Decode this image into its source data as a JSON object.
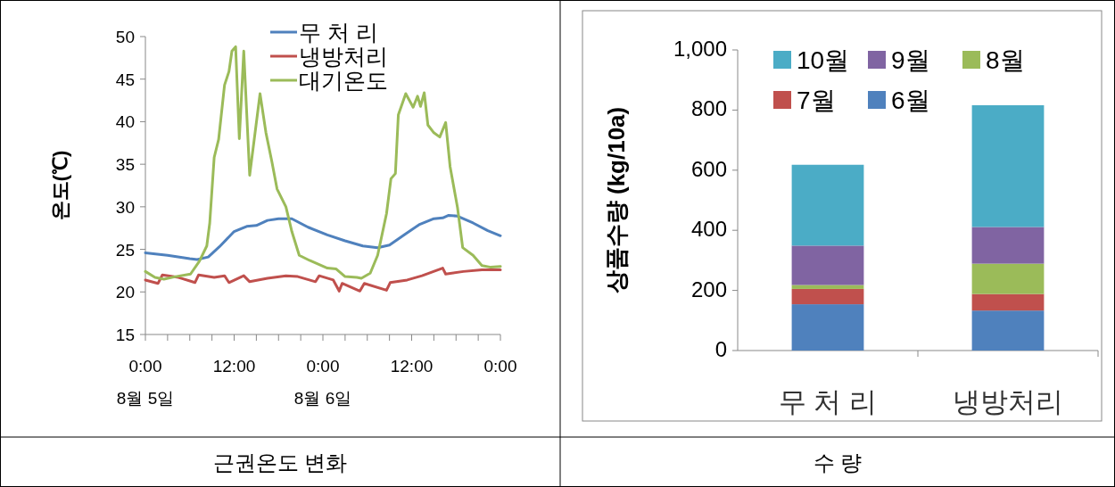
{
  "chart_data": [
    {
      "type": "line",
      "ylabel": "온도(℃)",
      "annotations": [
        "근권온도 변화"
      ],
      "legend": "top",
      "marker": "none",
      "line_style": "solid",
      "xlim": [
        "--08-05T00:00",
        "--08-07T00:00"
      ],
      "xticks": [
        {
          "value": "--08-05T00:00",
          "label": "0:00\n8월 5일"
        },
        {
          "value": "--08-05T03:00",
          "label": null
        },
        {
          "value": "--08-05T06:00",
          "label": null
        },
        {
          "value": "--08-05T09:00",
          "label": null
        },
        {
          "value": "--08-05T12:00",
          "label": "12:00"
        },
        {
          "value": "--08-05T15:00",
          "label": null
        },
        {
          "value": "--08-05T18:00",
          "label": null
        },
        {
          "value": "--08-05T21:00",
          "label": null
        },
        {
          "value": "--08-06T00:00",
          "label": "0:00\n8월 6일"
        },
        {
          "value": "--08-06T03:00",
          "label": null
        },
        {
          "value": "--08-06T06:00",
          "label": null
        },
        {
          "value": "--08-06T09:00",
          "label": null
        },
        {
          "value": "--08-06T12:00",
          "label": "12:00"
        },
        {
          "value": "--08-06T15:00",
          "label": null
        },
        {
          "value": "--08-06T18:00",
          "label": null
        },
        {
          "value": "--08-06T21:00",
          "label": null
        },
        {
          "value": "--08-07T00:00",
          "label": "0:00"
        }
      ],
      "ylim": [
        15,
        50
      ],
      "yticks": [
        15,
        20,
        25,
        30,
        35,
        40,
        45,
        50
      ],
      "series": [
        {
          "name": "무 처 리",
          "color": "#4f81bd",
          "x": [
            "--08-05T00:00",
            "--08-05T03:00",
            "--08-05T06:00",
            "--08-05T07:00",
            "--08-05T08:30",
            "--08-05T10:00",
            "--08-05T12:00",
            "--08-05T13:42",
            "--08-05T15:00",
            "--08-05T16:30",
            "--08-05T18:00",
            "--08-05T19:48",
            "--08-05T22:00",
            "--08-06T00:36",
            "--08-06T03:00",
            "--08-06T05:24",
            "--08-06T07:24",
            "--08-06T09:00",
            "--08-06T11:00",
            "--08-06T13:00",
            "--08-06T15:00",
            "--08-06T16:12",
            "--08-06T17:00",
            "--08-06T18:12",
            "--08-06T20:18",
            "--08-06T22:18",
            "--08-07T00:00"
          ],
          "values": [
            24.6,
            24.3,
            23.9,
            23.8,
            24.1,
            25.3,
            27.1,
            27.7,
            27.8,
            28.4,
            28.6,
            28.6,
            27.6,
            26.7,
            26.0,
            25.4,
            25.2,
            25.5,
            26.7,
            27.9,
            28.6,
            28.7,
            29.0,
            28.9,
            28.1,
            27.2,
            26.6
          ]
        },
        {
          "name": "냉방처리",
          "color": "#c0504d",
          "x": [
            "--08-05T00:00",
            "--08-05T01:42",
            "--08-05T02:18",
            "--08-05T04:30",
            "--08-05T06:42",
            "--08-05T07:12",
            "--08-05T09:18",
            "--08-05T10:42",
            "--08-05T11:18",
            "--08-05T13:18",
            "--08-05T14:06",
            "--08-05T16:30",
            "--08-05T19:00",
            "--08-05T20:36",
            "--08-05T23:00",
            "--08-05T23:30",
            "--08-06T01:24",
            "--08-06T02:12",
            "--08-06T02:36",
            "--08-06T05:00",
            "--08-06T05:36",
            "--08-06T08:36",
            "--08-06T09:06",
            "--08-06T11:24",
            "--08-06T13:24",
            "--08-06T16:12",
            "--08-06T16:36",
            "--08-06T19:00",
            "--08-06T21:30",
            "--08-07T00:00"
          ],
          "values": [
            21.4,
            21.0,
            22.0,
            21.7,
            21.1,
            22.0,
            21.7,
            21.9,
            21.1,
            21.9,
            21.2,
            21.6,
            21.9,
            21.8,
            21.2,
            21.9,
            21.4,
            20.1,
            21.0,
            20.1,
            21.0,
            20.2,
            21.1,
            21.4,
            21.9,
            22.8,
            22.1,
            22.4,
            22.6,
            22.6
          ]
        },
        {
          "name": "대기온도",
          "color": "#9bbb59",
          "x": [
            "--08-05T00:00",
            "--08-05T01:18",
            "--08-05T02:30",
            "--08-05T04:06",
            "--08-05T06:06",
            "--08-05T07:18",
            "--08-05T08:18",
            "--08-05T08:42",
            "--08-05T09:18",
            "--08-05T09:54",
            "--08-05T10:42",
            "--08-05T11:18",
            "--08-05T11:42",
            "--08-05T12:12",
            "--08-05T12:42",
            "--08-05T13:18",
            "--08-05T14:06",
            "--08-05T15:30",
            "--08-05T16:18",
            "--08-05T17:06",
            "--08-05T17:48",
            "--08-05T19:00",
            "--08-05T19:48",
            "--08-05T20:48",
            "--08-05T22:12",
            "--08-06T00:36",
            "--08-06T01:48",
            "--08-06T03:00",
            "--08-06T04:36",
            "--08-06T05:12",
            "--08-06T06:24",
            "--08-06T07:24",
            "--08-06T08:36",
            "--08-06T09:12",
            "--08-06T09:48",
            "--08-06T10:12",
            "--08-06T11:12",
            "--08-06T12:12",
            "--08-06T12:48",
            "--08-06T13:12",
            "--08-06T13:42",
            "--08-06T14:12",
            "--08-06T15:00",
            "--08-06T15:48",
            "--08-06T16:36",
            "--08-06T17:12",
            "--08-06T18:12",
            "--08-06T18:54",
            "--08-06T20:18",
            "--08-06T21:30",
            "--08-06T22:42",
            "--08-07T00:00"
          ],
          "values": [
            22.4,
            21.7,
            21.5,
            21.8,
            22.1,
            23.6,
            25.4,
            28.1,
            35.8,
            37.9,
            44.3,
            45.9,
            48.3,
            48.8,
            38.0,
            48.3,
            33.7,
            43.3,
            38.7,
            35.3,
            32.1,
            30.0,
            27.1,
            24.3,
            23.7,
            22.8,
            22.7,
            21.8,
            21.7,
            21.6,
            22.2,
            24.3,
            29.2,
            33.3,
            33.9,
            40.8,
            43.3,
            41.7,
            43.0,
            41.8,
            43.4,
            39.6,
            38.7,
            38.2,
            39.9,
            34.7,
            29.9,
            25.2,
            24.3,
            23.1,
            22.9,
            23.0
          ]
        }
      ]
    },
    {
      "type": "bar",
      "stacked": true,
      "ylabel": "상품수량 (kg/10a)",
      "annotations": [
        "수    량"
      ],
      "legend": "top",
      "categories": [
        "무 처 리",
        "냉방처리"
      ],
      "ylim": [
        0,
        1000
      ],
      "yticks": [
        0,
        200,
        400,
        600,
        800,
        {
          "value": 1000,
          "label": "1,000"
        }
      ],
      "series": [
        {
          "name": "6월",
          "color": "#4f81bd",
          "values": [
            154,
            133
          ]
        },
        {
          "name": "7월",
          "color": "#c0504d",
          "values": [
            51,
            55
          ]
        },
        {
          "name": "8월",
          "color": "#9bbb59",
          "values": [
            13,
            101
          ]
        },
        {
          "name": "9월",
          "color": "#8064a2",
          "values": [
            131,
            122
          ]
        },
        {
          "name": "10월",
          "color": "#4bacc6",
          "values": [
            269,
            405
          ]
        }
      ]
    }
  ]
}
